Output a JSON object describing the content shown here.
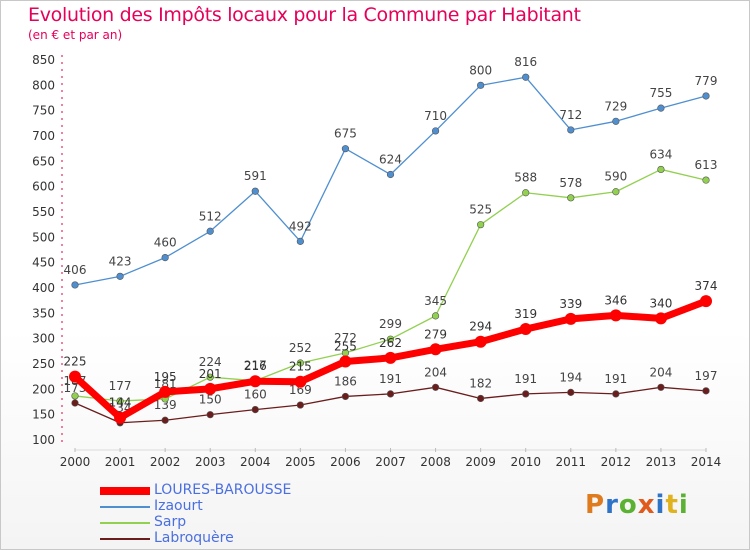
{
  "header": {
    "title": "Evolution des Impôts locaux pour la Commune par Habitant",
    "subtitle": "(en € et par an)"
  },
  "logo": {
    "text": "Proxiti",
    "colors": [
      "#e07a1e",
      "#2f73c8",
      "#5bb131",
      "#e05a1e",
      "#2f73c8",
      "#e0b21e",
      "#5bb131"
    ]
  },
  "chart_data": {
    "type": "line",
    "categories": [
      "2000",
      "2001",
      "2002",
      "2003",
      "2004",
      "2005",
      "2006",
      "2007",
      "2008",
      "2009",
      "2010",
      "2011",
      "2012",
      "2013",
      "2014"
    ],
    "ylim": [
      100,
      850
    ],
    "yticks": [
      100,
      150,
      200,
      250,
      300,
      350,
      400,
      450,
      500,
      550,
      600,
      650,
      700,
      750,
      800,
      850
    ],
    "grid": false,
    "legend_position": "bottom-left",
    "series": [
      {
        "name": "Labroquère",
        "color": "#6b1d1d",
        "values": [
          173,
          134,
          139,
          150,
          160,
          169,
          186,
          191,
          204,
          182,
          191,
          194,
          191,
          204,
          197
        ]
      },
      {
        "name": "Sarp",
        "color": "#92d050",
        "values": [
          187,
          177,
          181,
          224,
          217,
          252,
          272,
          299,
          345,
          525,
          588,
          578,
          590,
          634,
          613
        ]
      },
      {
        "name": "Izaourt",
        "color": "#4f8fd0",
        "values": [
          406,
          423,
          460,
          512,
          591,
          492,
          675,
          624,
          710,
          800,
          816,
          712,
          729,
          755,
          779
        ]
      },
      {
        "name": "LOURES-BAROUSSE",
        "color": "#ff0000",
        "values": [
          225,
          144,
          195,
          201,
          216,
          215,
          255,
          262,
          279,
          294,
          319,
          339,
          346,
          340,
          374
        ]
      }
    ],
    "legend_order": [
      "LOURES-BAROUSSE",
      "Izaourt",
      "Sarp",
      "Labroquère"
    ]
  }
}
